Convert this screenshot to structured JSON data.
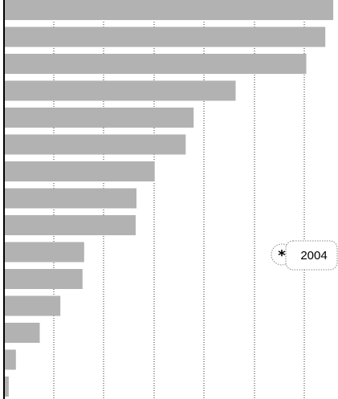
{
  "chart_data": {
    "type": "bar",
    "orientation": "horizontal",
    "categories": [
      "",
      "",
      "",
      "",
      "",
      "",
      "",
      "",
      "",
      "",
      "",
      "",
      "",
      "",
      ""
    ],
    "values": [
      415,
      405,
      381,
      292,
      239,
      229,
      190,
      167,
      166,
      101,
      99,
      71,
      45,
      15,
      6
    ],
    "xlim": [
      0,
      420
    ],
    "grid": "vertical-dotted",
    "bar_color": "#b2b2b2",
    "title": "",
    "xlabel": "",
    "ylabel": "",
    "annotation": {
      "icon": "asterisk-icon",
      "text": "2004",
      "row": 9
    }
  }
}
